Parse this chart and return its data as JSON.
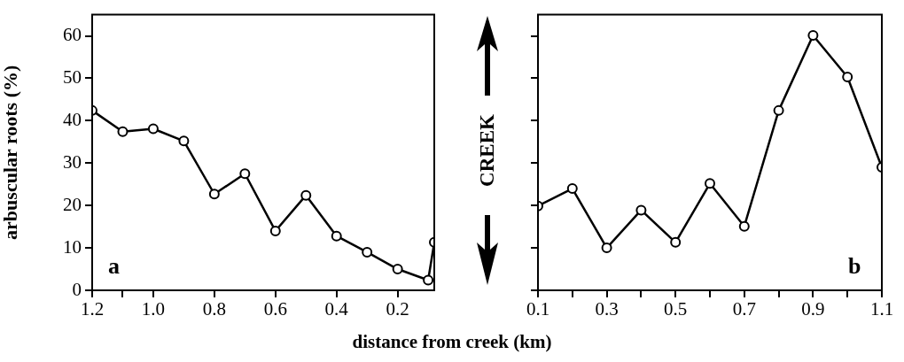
{
  "chart_data": [
    {
      "type": "line",
      "xlabel": "distance from creek (km)",
      "ylabel": "arbuscular roots (%)",
      "annotations": [
        "a",
        "CREEK"
      ],
      "x": [
        1.2,
        1.1,
        1.0,
        0.9,
        0.8,
        0.7,
        0.6,
        0.5,
        0.4,
        0.3,
        0.2,
        0.1,
        0.08
      ],
      "series": [
        {
          "color": "#000000",
          "values": [
            42.4,
            37.4,
            38.1,
            35.2,
            22.7,
            27.5,
            14.0,
            22.4,
            12.8,
            9.0,
            5.0,
            2.4,
            11.3
          ]
        }
      ],
      "xlim": [
        1.2,
        0.08
      ],
      "xticks": [
        1.2,
        {
          "value": 1.1,
          "label": null
        },
        "1.0",
        0.8,
        0.6,
        0.4,
        0.2
      ],
      "ylim": [
        0,
        65
      ],
      "yticks": [
        0,
        10,
        20,
        30,
        40,
        50,
        60
      ],
      "marker": "circle",
      "line_style": "solid",
      "grid": false,
      "legend": false
    },
    {
      "type": "line",
      "annotations": [
        "b"
      ],
      "x": [
        0.1,
        0.2,
        0.3,
        0.4,
        0.5,
        0.6,
        0.7,
        0.8,
        0.9,
        1.0,
        1.1
      ],
      "series": [
        {
          "color": "#000000",
          "values": [
            19.9,
            24.0,
            10.0,
            18.9,
            11.3,
            25.2,
            15.1,
            42.4,
            60.1,
            50.3,
            29.0
          ]
        }
      ],
      "xlim": [
        0.1,
        1.1
      ],
      "xticks": [
        0.1,
        {
          "value": 0.2,
          "label": null
        },
        0.3,
        {
          "value": 0.4,
          "label": null
        },
        0.5,
        {
          "value": 0.6,
          "label": null
        },
        0.7,
        {
          "value": 0.8,
          "label": null
        },
        0.9,
        {
          "value": 1.0,
          "label": null
        },
        1.1
      ],
      "ylim": [
        0,
        65
      ],
      "yticks": [
        {
          "value": 0,
          "label": null
        },
        {
          "value": 10,
          "label": null
        },
        {
          "value": 20,
          "label": null
        },
        {
          "value": 30,
          "label": null
        },
        {
          "value": 40,
          "label": null
        },
        {
          "value": 50,
          "label": null
        },
        {
          "value": 60,
          "label": null
        }
      ],
      "tick_labels": "x",
      "marker": "circle",
      "line_style": "solid",
      "grid": false,
      "legend": false
    }
  ]
}
